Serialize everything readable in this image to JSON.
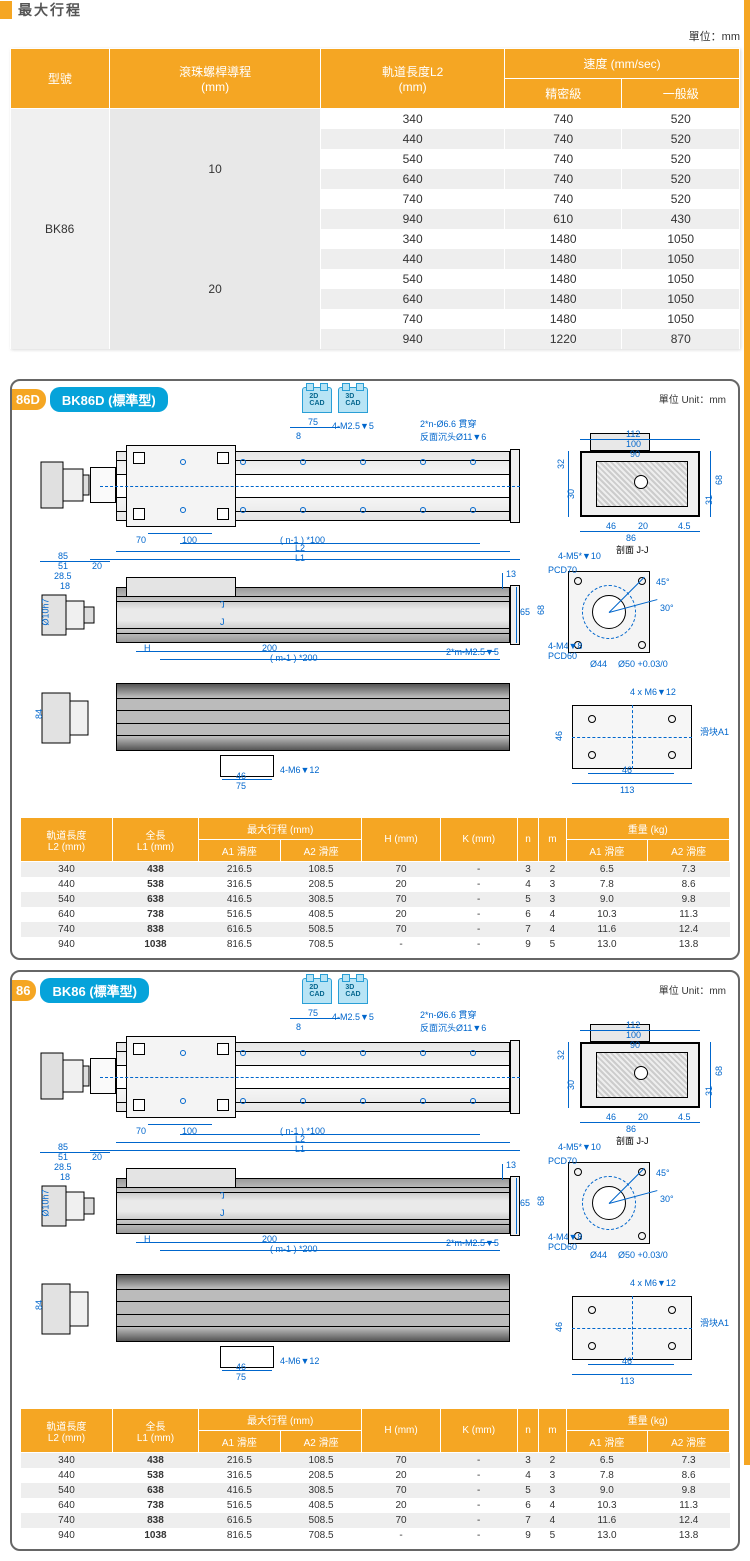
{
  "section_title": "最大行程",
  "unit_label": "單位：mm",
  "top_table": {
    "headers": {
      "model": "型號",
      "lead": "滾珠螺桿導程\n(mm)",
      "l2": "軌道長度L2\n(mm)",
      "speed": "速度 (mm/sec)",
      "speed_precise": "精密級",
      "speed_general": "一般級"
    },
    "model": "BK86",
    "groups": [
      {
        "lead": "10",
        "rows": [
          {
            "l2": "340",
            "p": "740",
            "g": "520"
          },
          {
            "l2": "440",
            "p": "740",
            "g": "520"
          },
          {
            "l2": "540",
            "p": "740",
            "g": "520"
          },
          {
            "l2": "640",
            "p": "740",
            "g": "520"
          },
          {
            "l2": "740",
            "p": "740",
            "g": "520"
          },
          {
            "l2": "940",
            "p": "610",
            "g": "430"
          }
        ]
      },
      {
        "lead": "20",
        "rows": [
          {
            "l2": "340",
            "p": "1480",
            "g": "1050"
          },
          {
            "l2": "440",
            "p": "1480",
            "g": "1050"
          },
          {
            "l2": "540",
            "p": "1480",
            "g": "1050"
          },
          {
            "l2": "640",
            "p": "1480",
            "g": "1050"
          },
          {
            "l2": "740",
            "p": "1480",
            "g": "1050"
          },
          {
            "l2": "940",
            "p": "1220",
            "g": "870"
          }
        ]
      }
    ]
  },
  "panels": [
    {
      "badge_num": "86D",
      "badge_title": "BK86D (標準型)"
    },
    {
      "badge_num": "86",
      "badge_title": "BK86 (標準型)"
    }
  ],
  "cad": {
    "c2d": "2D\nCAD",
    "c3d": "3D\nCAD"
  },
  "panel_unit": "單位 Unit：mm",
  "dims": {
    "d75": "75",
    "d8": "8",
    "d4m25": "4-M2.5▼5",
    "note_top": "2*n-Ø6.6 貫穿\n反面沉头Ø11▼6",
    "d70": "70",
    "d100": "100",
    "n1_100": "( n-1 ) *100",
    "L2": "L2",
    "L1": "L1",
    "d85": "85",
    "d51": "51",
    "d20": "20",
    "d28_5": "28.5",
    "d18": "18",
    "d10h7": "Ø10h7",
    "H": "H",
    "J": "J",
    "d200": "200",
    "m1_200": "( m-1 ) *200",
    "d13": "13",
    "d65": "65",
    "note_side": "2*m-M2.5▼5",
    "d84": "84",
    "d46": "46",
    "d4m6": "4-M6▼12",
    "x112": "112",
    "x100": "100",
    "x90": "90",
    "x32": "32",
    "x30": "30",
    "x68": "68",
    "x31": "31",
    "x4_5": "4.5",
    "x86": "86",
    "x20": "20",
    "sectionJJ": "剖面 J-J",
    "mf_4m5": "4-M5*▼10",
    "mf_pcd70": "PCD70",
    "mf_4m4": "4-M4▼8",
    "mf_pcd60": "PCD60",
    "mf_44": "Ø44",
    "mf_50": "Ø50 +0.03/0",
    "mf_68": "68",
    "mf_45": "45°",
    "mf_30": "30°",
    "cb_4m6": "4 x  M6▼12",
    "cb_a1": "滑块A1",
    "cb_46": "46",
    "cb_113": "113",
    "cb_v46": "46"
  },
  "dtable": {
    "headers": {
      "l2": "軌道長度\nL2 (mm)",
      "l1": "全長\nL1 (mm)",
      "stroke": "最大行程  (mm)",
      "a1": "A1 滑座",
      "a2": "A2 滑座",
      "h": "H (mm)",
      "k": "K (mm)",
      "n": "n",
      "m": "m",
      "weight": "重量 (kg)",
      "wa1": "A1 滑座",
      "wa2": "A2 滑座"
    },
    "rows": [
      {
        "l2": "340",
        "l1": "438",
        "a1": "216.5",
        "a2": "108.5",
        "h": "70",
        "k": "-",
        "n": "3",
        "m": "2",
        "wa1": "6.5",
        "wa2": "7.3"
      },
      {
        "l2": "440",
        "l1": "538",
        "a1": "316.5",
        "a2": "208.5",
        "h": "20",
        "k": "-",
        "n": "4",
        "m": "3",
        "wa1": "7.8",
        "wa2": "8.6"
      },
      {
        "l2": "540",
        "l1": "638",
        "a1": "416.5",
        "a2": "308.5",
        "h": "70",
        "k": "-",
        "n": "5",
        "m": "3",
        "wa1": "9.0",
        "wa2": "9.8"
      },
      {
        "l2": "640",
        "l1": "738",
        "a1": "516.5",
        "a2": "408.5",
        "h": "20",
        "k": "-",
        "n": "6",
        "m": "4",
        "wa1": "10.3",
        "wa2": "11.3"
      },
      {
        "l2": "740",
        "l1": "838",
        "a1": "616.5",
        "a2": "508.5",
        "h": "70",
        "k": "-",
        "n": "7",
        "m": "4",
        "wa1": "11.6",
        "wa2": "12.4"
      },
      {
        "l2": "940",
        "l1": "1038",
        "a1": "816.5",
        "a2": "708.5",
        "h": "-",
        "k": "-",
        "n": "9",
        "m": "5",
        "wa1": "13.0",
        "wa2": "13.8"
      }
    ]
  },
  "colors": {
    "accent": "#f5a623",
    "blue": "#06a3da",
    "dim": "#0066cc"
  }
}
